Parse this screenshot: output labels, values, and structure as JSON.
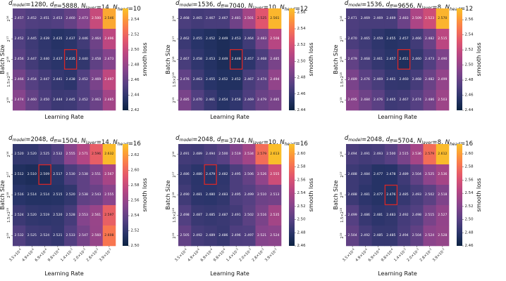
{
  "colors": {
    "best_cell_outline": "#d62728",
    "colormap": "plasma-like (dark blue to orange/yellow)"
  },
  "common": {
    "xlabel": "Learning Rate",
    "ylabel": "Batch Size",
    "colorbar_label": "smooth loss"
  },
  "chart_data": [
    {
      "type": "heatmap",
      "title": "d_model=1280, d_ff=5888, N_layer=14, N_head=10",
      "title_parts": {
        "d_model": "1280",
        "d_ff": "5888",
        "N_layer": "14",
        "N_head": "10"
      },
      "rows": [
        "2^16",
        "2^17",
        "2^18",
        "1.5×2^18",
        "2^19"
      ],
      "cols": [],
      "values": [
        [
          2.457,
          2.452,
          2.451,
          2.453,
          2.46,
          2.473,
          2.5,
          2.546
        ],
        [
          2.452,
          2.445,
          2.439,
          2.435,
          2.437,
          2.446,
          2.464,
          2.496
        ],
        [
          2.456,
          2.447,
          2.44,
          2.437,
          2.435,
          2.44,
          2.458,
          2.473
        ],
        [
          2.466,
          2.454,
          2.447,
          2.441,
          2.438,
          2.452,
          2.469,
          2.497
        ],
        [
          2.474,
          2.46,
          2.45,
          2.444,
          2.445,
          2.452,
          2.463,
          2.485
        ]
      ],
      "best": [
        2,
        4
      ],
      "vmin": 2.42,
      "vmax": 2.555,
      "colorbar_ticks": [
        "2.54",
        "2.52",
        "2.50",
        "2.48",
        "2.46",
        "2.44",
        "2.42"
      ],
      "colorbar_tick_values": [
        2.54,
        2.52,
        2.5,
        2.48,
        2.46,
        2.44,
        2.42
      ]
    },
    {
      "type": "heatmap",
      "title": "d_model=1536, d_ff=7040, N_layer=10, N_head=12",
      "title_parts": {
        "d_model": "1536",
        "d_ff": "7040",
        "N_layer": "10",
        "N_head": "12"
      },
      "rows": [
        "2^16",
        "2^17",
        "2^18",
        "1.5×2^18",
        "2^19"
      ],
      "cols": [],
      "values": [
        [
          2.468,
          2.465,
          2.467,
          2.467,
          2.481,
          2.501,
          2.525,
          2.561
        ],
        [
          2.462,
          2.455,
          2.452,
          2.449,
          2.453,
          2.464,
          2.483,
          2.508
        ],
        [
          2.467,
          2.458,
          2.453,
          2.449,
          2.448,
          2.457,
          2.468,
          2.485
        ],
        [
          2.476,
          2.463,
          2.455,
          2.452,
          2.452,
          2.467,
          2.474,
          2.494
        ],
        [
          2.485,
          2.47,
          2.461,
          2.454,
          2.458,
          2.469,
          2.479,
          2.485
        ]
      ],
      "best": [
        2,
        4
      ],
      "vmin": 2.44,
      "vmax": 2.565,
      "colorbar_ticks": [
        "2.56",
        "2.54",
        "2.52",
        "2.50",
        "2.48",
        "2.46",
        "2.44"
      ],
      "colorbar_tick_values": [
        2.56,
        2.54,
        2.52,
        2.5,
        2.48,
        2.46,
        2.44
      ]
    },
    {
      "type": "heatmap",
      "title": "d_model=1536, d_ff=9656, N_layer=8, N_head=12",
      "title_parts": {
        "d_model": "1536",
        "d_ff": "9656",
        "N_layer": "8",
        "N_head": "12"
      },
      "rows": [
        "2^16",
        "2^17",
        "2^18",
        "1.5×2^18",
        "2^19"
      ],
      "cols": [],
      "values": [
        [
          2.471,
          2.469,
          2.469,
          2.469,
          2.483,
          2.509,
          2.523,
          2.57
        ],
        [
          2.47,
          2.465,
          2.459,
          2.455,
          2.457,
          2.466,
          2.482,
          2.515
        ],
        [
          2.479,
          2.468,
          2.461,
          2.457,
          2.451,
          2.46,
          2.473,
          2.49
        ],
        [
          2.489,
          2.476,
          2.469,
          2.461,
          2.46,
          2.468,
          2.482,
          2.499
        ],
        [
          2.495,
          2.484,
          2.476,
          2.465,
          2.467,
          2.474,
          2.486,
          2.503
        ]
      ],
      "best": [
        2,
        4
      ],
      "vmin": 2.44,
      "vmax": 2.575,
      "colorbar_ticks": [
        "2.56",
        "2.54",
        "2.52",
        "2.50",
        "2.48",
        "2.46",
        "2.44"
      ],
      "colorbar_tick_values": [
        2.56,
        2.54,
        2.52,
        2.5,
        2.48,
        2.46,
        2.44
      ]
    },
    {
      "type": "heatmap",
      "title": "d_model=2048, d_ff=1504, N_layer=14, N_head=16",
      "title_parts": {
        "d_model": "2048",
        "d_ff": "1504",
        "N_layer": "14",
        "N_head": "16"
      },
      "rows": [
        "2^16",
        "2^17",
        "2^18",
        "1.5×2^18",
        "2^19"
      ],
      "cols": [
        "3.5×10^-4",
        "4.9×10^-4",
        "6.9×10^-4",
        "9.8×10^-4",
        "1.4×10^-3",
        "2.0×10^-3",
        "2.8×10^-3",
        "3.9×10^-3"
      ],
      "values": [
        [
          2.52,
          2.52,
          2.525,
          2.532,
          2.555,
          2.571,
          2.596,
          2.632
        ],
        [
          2.512,
          2.51,
          2.509,
          2.517,
          2.53,
          2.538,
          2.551,
          2.567
        ],
        [
          2.516,
          2.514,
          2.514,
          2.515,
          2.52,
          2.538,
          2.543,
          2.555
        ],
        [
          2.524,
          2.52,
          2.519,
          2.52,
          2.528,
          2.553,
          2.561,
          2.597
        ],
        [
          2.532,
          2.525,
          2.524,
          2.521,
          2.533,
          2.547,
          2.56,
          2.608
        ]
      ],
      "best": [
        1,
        2
      ],
      "vmin": 2.5,
      "vmax": 2.635,
      "colorbar_ticks": [
        "2.62",
        "2.60",
        "2.58",
        "2.56",
        "2.54",
        "2.52",
        "2.50"
      ],
      "colorbar_tick_values": [
        2.62,
        2.6,
        2.58,
        2.56,
        2.54,
        2.52,
        2.5
      ]
    },
    {
      "type": "heatmap",
      "title": "d_model=2048, d_ff=3744, N_layer=10, N_head=16",
      "title_parts": {
        "d_model": "2048",
        "d_ff": "3744",
        "N_layer": "10",
        "N_head": "16"
      },
      "rows": [
        "2^16",
        "2^17",
        "2^18",
        "1.5×2^18",
        "2^19"
      ],
      "cols": [
        "3.5×10^-4",
        "4.9×10^-4",
        "6.9×10^-4",
        "9.8×10^-4",
        "1.4×10^-3",
        "2.0×10^-3",
        "2.8×10^-3",
        "3.9×10^-3"
      ],
      "values": [
        [
          2.491,
          2.489,
          2.494,
          2.5,
          2.519,
          2.534,
          2.579,
          2.613
        ],
        [
          2.486,
          2.48,
          2.479,
          2.482,
          2.495,
          2.506,
          2.526,
          2.555
        ],
        [
          2.49,
          2.481,
          2.48,
          2.483,
          2.495,
          2.499,
          2.51,
          2.513
        ],
        [
          2.498,
          2.487,
          2.485,
          2.487,
          2.491,
          2.502,
          2.516,
          2.535
        ],
        [
          2.505,
          2.492,
          2.489,
          2.486,
          2.496,
          2.497,
          2.521,
          2.524
        ]
      ],
      "best": [
        1,
        2
      ],
      "vmin": 2.46,
      "vmax": 2.615,
      "colorbar_ticks": [
        "2.60",
        "2.58",
        "2.56",
        "2.54",
        "2.52",
        "2.50",
        "2.48",
        "2.46"
      ],
      "colorbar_tick_values": [
        2.6,
        2.58,
        2.56,
        2.54,
        2.52,
        2.5,
        2.48,
        2.46
      ]
    },
    {
      "type": "heatmap",
      "title": "d_model=2048, d_ff=5704, N_layer=8, N_head=16",
      "title_parts": {
        "d_model": "2048",
        "d_ff": "5704",
        "N_layer": "8",
        "N_head": "16"
      },
      "rows": [
        "2^16",
        "2^17",
        "2^18",
        "1.5×2^18",
        "2^19"
      ],
      "cols": [
        "3.5×10^-4",
        "4.9×10^-4",
        "6.9×10^-4",
        "9.8×10^-4",
        "1.4×10^-3",
        "2.0×10^-3",
        "2.8×10^-3",
        "3.9×10^-3"
      ],
      "values": [
        [
          2.494,
          2.491,
          2.493,
          2.5,
          2.515,
          2.536,
          2.579,
          2.612
        ],
        [
          2.488,
          2.484,
          2.477,
          2.478,
          2.489,
          2.504,
          2.525,
          2.536
        ],
        [
          2.488,
          2.481,
          2.477,
          2.476,
          2.485,
          2.493,
          2.502,
          2.518
        ],
        [
          2.499,
          2.486,
          2.481,
          2.483,
          2.492,
          2.498,
          2.515,
          2.527
        ],
        [
          2.504,
          2.492,
          2.485,
          2.485,
          2.494,
          2.504,
          2.524,
          2.528
        ]
      ],
      "best": [
        2,
        3
      ],
      "vmin": 2.46,
      "vmax": 2.615,
      "colorbar_ticks": [
        "2.60",
        "2.58",
        "2.56",
        "2.54",
        "2.52",
        "2.50",
        "2.48",
        "2.46"
      ],
      "colorbar_tick_values": [
        2.6,
        2.58,
        2.56,
        2.54,
        2.52,
        2.5,
        2.48,
        2.46
      ]
    }
  ]
}
